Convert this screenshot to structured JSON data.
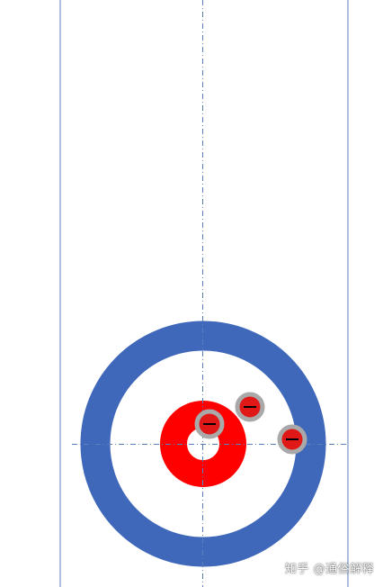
{
  "watermark": {
    "text": "知乎 @通俗解释"
  },
  "colors": {
    "twelve_foot_ring": "#3f67ba",
    "four_foot_ring": "#ff0000",
    "line": "#5b7fb8",
    "stone_handle_ring": "#a9a9a9",
    "stone_body": "#e01818",
    "stone_handle": "#000000"
  },
  "stones": [
    {
      "name": "stone-1",
      "team": "red"
    },
    {
      "name": "stone-2",
      "team": "red"
    },
    {
      "name": "stone-3",
      "team": "red"
    }
  ]
}
